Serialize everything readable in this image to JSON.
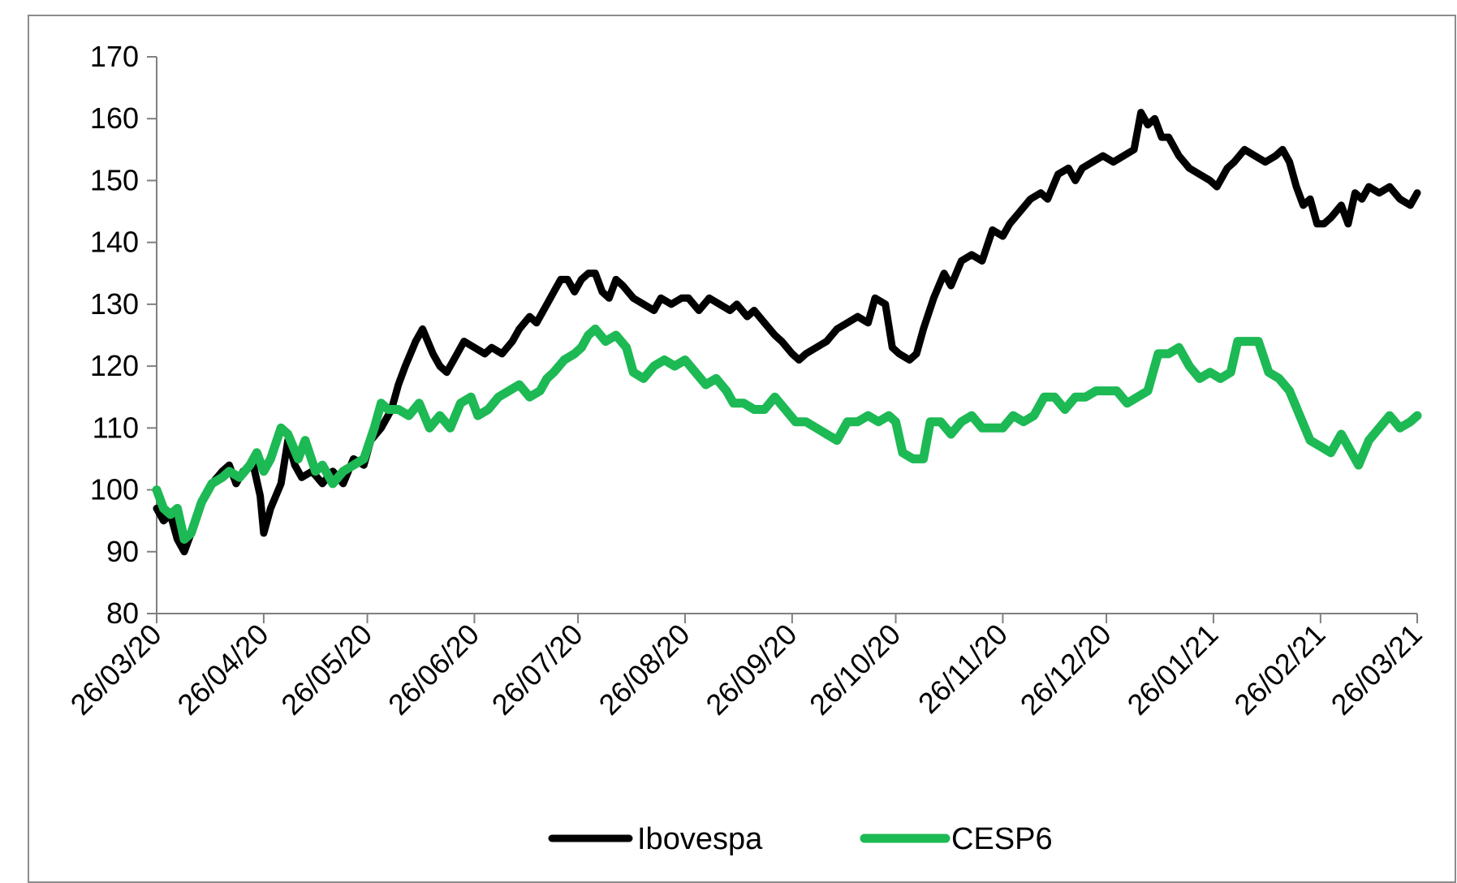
{
  "chart_data": {
    "type": "line",
    "title": "",
    "xlabel": "",
    "ylabel": "",
    "ylim": [
      80,
      170
    ],
    "yticks": [
      80,
      90,
      100,
      110,
      120,
      130,
      140,
      150,
      160,
      170
    ],
    "yticks_labels": [
      "80",
      "90",
      "100",
      "110",
      "120",
      "130",
      "140",
      "150",
      "160",
      "170"
    ],
    "xlim": [
      "2020-03-26",
      "2021-03-26"
    ],
    "xticks": [
      "2020-03-26",
      "2020-04-26",
      "2020-05-26",
      "2020-06-26",
      "2020-07-26",
      "2020-08-26",
      "2020-09-26",
      "2020-10-26",
      "2020-11-26",
      "2020-12-26",
      "2021-01-26",
      "2021-02-26",
      "2021-03-26"
    ],
    "xticks_labels": [
      "26/03/20",
      "26/04/20",
      "26/05/20",
      "26/06/20",
      "26/07/20",
      "26/08/20",
      "26/09/20",
      "26/10/20",
      "26/11/20",
      "26/12/20",
      "26/01/21",
      "26/02/21",
      "26/03/21"
    ],
    "grid": false,
    "legend_position": "bottom",
    "series": [
      {
        "name": "Ibovespa",
        "color": "#000000",
        "points": [
          [
            "2020-03-26",
            97
          ],
          [
            "2020-03-28",
            95
          ],
          [
            "2020-03-30",
            96
          ],
          [
            "2020-04-01",
            92
          ],
          [
            "2020-04-03",
            90
          ],
          [
            "2020-04-05",
            93
          ],
          [
            "2020-04-08",
            98
          ],
          [
            "2020-04-11",
            101
          ],
          [
            "2020-04-14",
            103
          ],
          [
            "2020-04-16",
            104
          ],
          [
            "2020-04-18",
            101
          ],
          [
            "2020-04-20",
            103
          ],
          [
            "2020-04-23",
            104
          ],
          [
            "2020-04-25",
            99
          ],
          [
            "2020-04-26",
            93
          ],
          [
            "2020-04-28",
            97
          ],
          [
            "2020-05-01",
            101
          ],
          [
            "2020-05-03",
            108
          ],
          [
            "2020-05-05",
            104
          ],
          [
            "2020-05-07",
            102
          ],
          [
            "2020-05-10",
            103
          ],
          [
            "2020-05-13",
            101
          ],
          [
            "2020-05-16",
            103
          ],
          [
            "2020-05-19",
            101
          ],
          [
            "2020-05-22",
            105
          ],
          [
            "2020-05-25",
            104
          ],
          [
            "2020-05-27",
            108
          ],
          [
            "2020-05-30",
            110
          ],
          [
            "2020-06-02",
            113
          ],
          [
            "2020-06-04",
            117
          ],
          [
            "2020-06-06",
            120
          ],
          [
            "2020-06-09",
            124
          ],
          [
            "2020-06-11",
            126
          ],
          [
            "2020-06-14",
            122
          ],
          [
            "2020-06-16",
            120
          ],
          [
            "2020-06-18",
            119
          ],
          [
            "2020-06-21",
            122
          ],
          [
            "2020-06-23",
            124
          ],
          [
            "2020-06-26",
            123
          ],
          [
            "2020-06-29",
            122
          ],
          [
            "2020-07-01",
            123
          ],
          [
            "2020-07-04",
            122
          ],
          [
            "2020-07-07",
            124
          ],
          [
            "2020-07-09",
            126
          ],
          [
            "2020-07-12",
            128
          ],
          [
            "2020-07-14",
            127
          ],
          [
            "2020-07-17",
            130
          ],
          [
            "2020-07-19",
            132
          ],
          [
            "2020-07-21",
            134
          ],
          [
            "2020-07-23",
            134
          ],
          [
            "2020-07-25",
            132
          ],
          [
            "2020-07-27",
            134
          ],
          [
            "2020-07-29",
            135
          ],
          [
            "2020-07-31",
            135
          ],
          [
            "2020-08-02",
            132
          ],
          [
            "2020-08-04",
            131
          ],
          [
            "2020-08-06",
            134
          ],
          [
            "2020-08-08",
            133
          ],
          [
            "2020-08-11",
            131
          ],
          [
            "2020-08-14",
            130
          ],
          [
            "2020-08-17",
            129
          ],
          [
            "2020-08-19",
            131
          ],
          [
            "2020-08-22",
            130
          ],
          [
            "2020-08-25",
            131
          ],
          [
            "2020-08-27",
            131
          ],
          [
            "2020-08-30",
            129
          ],
          [
            "2020-09-02",
            131
          ],
          [
            "2020-09-05",
            130
          ],
          [
            "2020-09-08",
            129
          ],
          [
            "2020-09-10",
            130
          ],
          [
            "2020-09-13",
            128
          ],
          [
            "2020-09-15",
            129
          ],
          [
            "2020-09-18",
            127
          ],
          [
            "2020-09-21",
            125
          ],
          [
            "2020-09-23",
            124
          ],
          [
            "2020-09-26",
            122
          ],
          [
            "2020-09-28",
            121
          ],
          [
            "2020-09-30",
            122
          ],
          [
            "2020-10-03",
            123
          ],
          [
            "2020-10-06",
            124
          ],
          [
            "2020-10-09",
            126
          ],
          [
            "2020-10-12",
            127
          ],
          [
            "2020-10-15",
            128
          ],
          [
            "2020-10-18",
            127
          ],
          [
            "2020-10-20",
            131
          ],
          [
            "2020-10-23",
            130
          ],
          [
            "2020-10-25",
            123
          ],
          [
            "2020-10-27",
            122
          ],
          [
            "2020-10-30",
            121
          ],
          [
            "2020-11-01",
            122
          ],
          [
            "2020-11-03",
            126
          ],
          [
            "2020-11-06",
            131
          ],
          [
            "2020-11-09",
            135
          ],
          [
            "2020-11-11",
            133
          ],
          [
            "2020-11-14",
            137
          ],
          [
            "2020-11-17",
            138
          ],
          [
            "2020-11-20",
            137
          ],
          [
            "2020-11-23",
            142
          ],
          [
            "2020-11-26",
            141
          ],
          [
            "2020-11-28",
            143
          ],
          [
            "2020-12-01",
            145
          ],
          [
            "2020-12-04",
            147
          ],
          [
            "2020-12-07",
            148
          ],
          [
            "2020-12-09",
            147
          ],
          [
            "2020-12-12",
            151
          ],
          [
            "2020-12-15",
            152
          ],
          [
            "2020-12-17",
            150
          ],
          [
            "2020-12-19",
            152
          ],
          [
            "2020-12-22",
            153
          ],
          [
            "2020-12-25",
            154
          ],
          [
            "2020-12-28",
            153
          ],
          [
            "2020-12-31",
            154
          ],
          [
            "2021-01-03",
            155
          ],
          [
            "2021-01-05",
            161
          ],
          [
            "2021-01-07",
            159
          ],
          [
            "2021-01-09",
            160
          ],
          [
            "2021-01-11",
            157
          ],
          [
            "2021-01-13",
            157
          ],
          [
            "2021-01-16",
            154
          ],
          [
            "2021-01-19",
            152
          ],
          [
            "2021-01-22",
            151
          ],
          [
            "2021-01-25",
            150
          ],
          [
            "2021-01-27",
            149
          ],
          [
            "2021-01-30",
            152
          ],
          [
            "2021-02-01",
            153
          ],
          [
            "2021-02-04",
            155
          ],
          [
            "2021-02-07",
            154
          ],
          [
            "2021-02-10",
            153
          ],
          [
            "2021-02-13",
            154
          ],
          [
            "2021-02-15",
            155
          ],
          [
            "2021-02-17",
            153
          ],
          [
            "2021-02-19",
            149
          ],
          [
            "2021-02-21",
            146
          ],
          [
            "2021-02-23",
            147
          ],
          [
            "2021-02-25",
            143
          ],
          [
            "2021-02-27",
            143
          ],
          [
            "2021-03-01",
            144
          ],
          [
            "2021-03-04",
            146
          ],
          [
            "2021-03-06",
            143
          ],
          [
            "2021-03-08",
            148
          ],
          [
            "2021-03-10",
            147
          ],
          [
            "2021-03-12",
            149
          ],
          [
            "2021-03-15",
            148
          ],
          [
            "2021-03-18",
            149
          ],
          [
            "2021-03-21",
            147
          ],
          [
            "2021-03-24",
            146
          ],
          [
            "2021-03-26",
            148
          ]
        ]
      },
      {
        "name": "CESP6",
        "color": "#1db954",
        "points": [
          [
            "2020-03-26",
            100
          ],
          [
            "2020-03-28",
            97
          ],
          [
            "2020-03-30",
            96
          ],
          [
            "2020-04-01",
            97
          ],
          [
            "2020-04-03",
            92
          ],
          [
            "2020-04-05",
            93
          ],
          [
            "2020-04-08",
            98
          ],
          [
            "2020-04-11",
            101
          ],
          [
            "2020-04-14",
            102
          ],
          [
            "2020-04-16",
            103
          ],
          [
            "2020-04-19",
            102
          ],
          [
            "2020-04-22",
            104
          ],
          [
            "2020-04-24",
            106
          ],
          [
            "2020-04-26",
            103
          ],
          [
            "2020-04-28",
            105
          ],
          [
            "2020-05-01",
            110
          ],
          [
            "2020-05-03",
            109
          ],
          [
            "2020-05-06",
            105
          ],
          [
            "2020-05-08",
            108
          ],
          [
            "2020-05-11",
            103
          ],
          [
            "2020-05-13",
            104
          ],
          [
            "2020-05-16",
            101
          ],
          [
            "2020-05-19",
            103
          ],
          [
            "2020-05-22",
            104
          ],
          [
            "2020-05-25",
            105
          ],
          [
            "2020-05-28",
            110
          ],
          [
            "2020-05-30",
            114
          ],
          [
            "2020-06-01",
            113
          ],
          [
            "2020-06-04",
            113
          ],
          [
            "2020-06-07",
            112
          ],
          [
            "2020-06-10",
            114
          ],
          [
            "2020-06-13",
            110
          ],
          [
            "2020-06-16",
            112
          ],
          [
            "2020-06-19",
            110
          ],
          [
            "2020-06-22",
            114
          ],
          [
            "2020-06-25",
            115
          ],
          [
            "2020-06-27",
            112
          ],
          [
            "2020-06-30",
            113
          ],
          [
            "2020-07-03",
            115
          ],
          [
            "2020-07-06",
            116
          ],
          [
            "2020-07-09",
            117
          ],
          [
            "2020-07-12",
            115
          ],
          [
            "2020-07-15",
            116
          ],
          [
            "2020-07-17",
            118
          ],
          [
            "2020-07-19",
            119
          ],
          [
            "2020-07-22",
            121
          ],
          [
            "2020-07-25",
            122
          ],
          [
            "2020-07-27",
            123
          ],
          [
            "2020-07-29",
            125
          ],
          [
            "2020-07-31",
            126
          ],
          [
            "2020-08-03",
            124
          ],
          [
            "2020-08-06",
            125
          ],
          [
            "2020-08-09",
            123
          ],
          [
            "2020-08-11",
            119
          ],
          [
            "2020-08-14",
            118
          ],
          [
            "2020-08-17",
            120
          ],
          [
            "2020-08-20",
            121
          ],
          [
            "2020-08-23",
            120
          ],
          [
            "2020-08-26",
            121
          ],
          [
            "2020-08-29",
            119
          ],
          [
            "2020-09-01",
            117
          ],
          [
            "2020-09-04",
            118
          ],
          [
            "2020-09-07",
            116
          ],
          [
            "2020-09-09",
            114
          ],
          [
            "2020-09-12",
            114
          ],
          [
            "2020-09-15",
            113
          ],
          [
            "2020-09-18",
            113
          ],
          [
            "2020-09-21",
            115
          ],
          [
            "2020-09-24",
            113
          ],
          [
            "2020-09-27",
            111
          ],
          [
            "2020-09-30",
            111
          ],
          [
            "2020-10-03",
            110
          ],
          [
            "2020-10-06",
            109
          ],
          [
            "2020-10-09",
            108
          ],
          [
            "2020-10-12",
            111
          ],
          [
            "2020-10-15",
            111
          ],
          [
            "2020-10-18",
            112
          ],
          [
            "2020-10-21",
            111
          ],
          [
            "2020-10-24",
            112
          ],
          [
            "2020-10-26",
            111
          ],
          [
            "2020-10-28",
            106
          ],
          [
            "2020-10-31",
            105
          ],
          [
            "2020-11-03",
            105
          ],
          [
            "2020-11-05",
            111
          ],
          [
            "2020-11-08",
            111
          ],
          [
            "2020-11-11",
            109
          ],
          [
            "2020-11-14",
            111
          ],
          [
            "2020-11-17",
            112
          ],
          [
            "2020-11-20",
            110
          ],
          [
            "2020-11-23",
            110
          ],
          [
            "2020-11-26",
            110
          ],
          [
            "2020-11-29",
            112
          ],
          [
            "2020-12-02",
            111
          ],
          [
            "2020-12-05",
            112
          ],
          [
            "2020-12-08",
            115
          ],
          [
            "2020-12-11",
            115
          ],
          [
            "2020-12-14",
            113
          ],
          [
            "2020-12-17",
            115
          ],
          [
            "2020-12-20",
            115
          ],
          [
            "2020-12-23",
            116
          ],
          [
            "2020-12-26",
            116
          ],
          [
            "2020-12-29",
            116
          ],
          [
            "2021-01-01",
            114
          ],
          [
            "2021-01-04",
            115
          ],
          [
            "2021-01-07",
            116
          ],
          [
            "2021-01-10",
            122
          ],
          [
            "2021-01-13",
            122
          ],
          [
            "2021-01-16",
            123
          ],
          [
            "2021-01-19",
            120
          ],
          [
            "2021-01-22",
            118
          ],
          [
            "2021-01-25",
            119
          ],
          [
            "2021-01-28",
            118
          ],
          [
            "2021-01-31",
            119
          ],
          [
            "2021-02-02",
            124
          ],
          [
            "2021-02-05",
            124
          ],
          [
            "2021-02-08",
            124
          ],
          [
            "2021-02-11",
            119
          ],
          [
            "2021-02-14",
            118
          ],
          [
            "2021-02-17",
            116
          ],
          [
            "2021-02-20",
            112
          ],
          [
            "2021-02-23",
            108
          ],
          [
            "2021-02-26",
            107
          ],
          [
            "2021-03-01",
            106
          ],
          [
            "2021-03-04",
            109
          ],
          [
            "2021-03-07",
            106
          ],
          [
            "2021-03-09",
            104
          ],
          [
            "2021-03-12",
            108
          ],
          [
            "2021-03-15",
            110
          ],
          [
            "2021-03-18",
            112
          ],
          [
            "2021-03-21",
            110
          ],
          [
            "2021-03-24",
            111
          ],
          [
            "2021-03-26",
            112
          ]
        ]
      }
    ]
  }
}
